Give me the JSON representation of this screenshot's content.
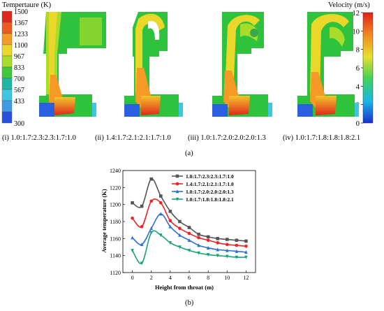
{
  "figure": {
    "label_a": "(a)",
    "label_b": "(b)"
  },
  "temperature_legend": {
    "title": "Tempertaure (K)",
    "ticks": [
      "1500",
      "1367",
      "1233",
      "1100",
      "967",
      "833",
      "700",
      "567",
      "433",
      "300"
    ],
    "colors": [
      "#e0281e",
      "#ef5a1e",
      "#f59a25",
      "#e9d82a",
      "#a6dc2a",
      "#3fc83a",
      "#20b6a6",
      "#3fc6e2",
      "#3f9ae8",
      "#2a50e0"
    ]
  },
  "velocity_legend": {
    "title": "Velocity (m/s)",
    "ticks": [
      "12",
      "10",
      "8",
      "6",
      "4",
      "2",
      "0"
    ]
  },
  "panels": [
    {
      "caption": "(i) 1.0:1.7:2.3:2.3:1.7:1.0"
    },
    {
      "caption": "(ii) 1.4:1.7:2.1:2.1:1.7:1.0"
    },
    {
      "caption": "(iii) 1.0:1.7:2.0:2.0:2.0:1.3"
    },
    {
      "caption": "(iv) 1.0:1.7:1.8:1.8:1.8:2.1"
    }
  ],
  "chart_data": {
    "type": "line",
    "xlabel": "Height from throat (m)",
    "ylabel": "Average temperature (K)",
    "xlim": [
      -1,
      13
    ],
    "ylim": [
      1120,
      1240
    ],
    "xticks": [
      0,
      2,
      4,
      6,
      8,
      10,
      12
    ],
    "yticks": [
      1120,
      1140,
      1160,
      1180,
      1200,
      1220,
      1240
    ],
    "legend_position": "top-right",
    "series": [
      {
        "name": "1.0:1.7:2.3:2.3:1.7:1.0",
        "color": "#555555",
        "marker": "square",
        "x": [
          0,
          1,
          2,
          3,
          4,
          5,
          6,
          7,
          8,
          9,
          10,
          11,
          12
        ],
        "y": [
          1202,
          1198,
          1230,
          1210,
          1192,
          1180,
          1173,
          1165,
          1162,
          1160,
          1159,
          1158,
          1157
        ]
      },
      {
        "name": "1.4:1.7:2.1:2.1:1.7:1.0",
        "color": "#ee2222",
        "marker": "circle",
        "x": [
          0,
          1,
          2,
          3,
          4,
          5,
          6,
          7,
          8,
          9,
          10,
          11,
          12
        ],
        "y": [
          1184,
          1174,
          1204,
          1202,
          1181,
          1172,
          1166,
          1161,
          1158,
          1155,
          1153,
          1152,
          1151
        ]
      },
      {
        "name": "1.0:1.7:2.0:2.0:2.0:1.3",
        "color": "#2a6fd6",
        "marker": "triangle-up",
        "x": [
          0,
          1,
          2,
          3,
          4,
          5,
          6,
          7,
          8,
          9,
          10,
          11,
          12
        ],
        "y": [
          1161,
          1153,
          1172,
          1189,
          1174,
          1164,
          1158,
          1152,
          1149,
          1147,
          1146,
          1145,
          1144
        ]
      },
      {
        "name": "1.0:1.7:1.8:1.8:1.8:2.1",
        "color": "#18a37a",
        "marker": "triangle-down",
        "x": [
          0,
          1,
          2,
          3,
          4,
          5,
          6,
          7,
          8,
          9,
          10,
          11,
          12
        ],
        "y": [
          1146,
          1131,
          1167,
          1164,
          1155,
          1150,
          1146,
          1143,
          1141,
          1140,
          1139,
          1138,
          1138
        ]
      }
    ]
  }
}
